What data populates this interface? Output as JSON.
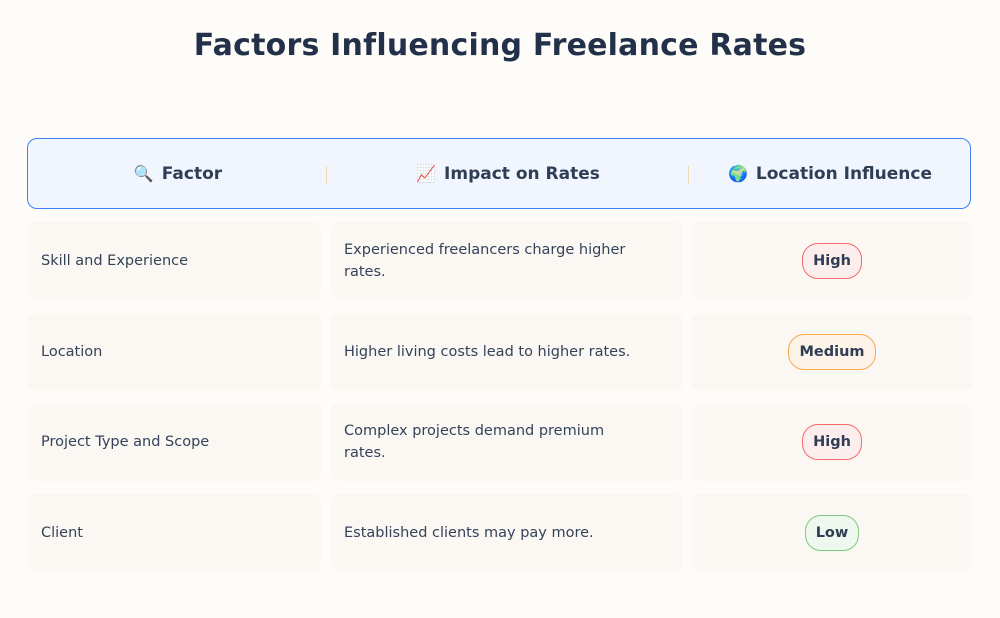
{
  "title": "Factors Influencing Freelance Rates",
  "headers": [
    {
      "icon": "🔍",
      "icon_name": "magnifier-icon",
      "label": "Factor"
    },
    {
      "icon": "📈",
      "icon_name": "chart-up-icon",
      "label": "Impact on Rates"
    },
    {
      "icon": "🌍",
      "icon_name": "globe-icon",
      "label": "Location Influence"
    }
  ],
  "rows": [
    {
      "factor": "Skill and Experience",
      "impact": "Experienced freelancers charge higher rates.",
      "influence": "High",
      "level": "high"
    },
    {
      "factor": "Location",
      "impact": "Higher living costs lead to higher rates.",
      "influence": "Medium",
      "level": "medium"
    },
    {
      "factor": "Project Type and Scope",
      "impact": "Complex projects demand premium rates.",
      "influence": "High",
      "level": "high"
    },
    {
      "factor": "Client",
      "impact": "Established clients may pay more.",
      "influence": "Low",
      "level": "low"
    }
  ],
  "colors": {
    "header_border": "#3b82f6",
    "high": "#f26b6b",
    "medium": "#f7a94e",
    "low": "#7ccb7c"
  }
}
